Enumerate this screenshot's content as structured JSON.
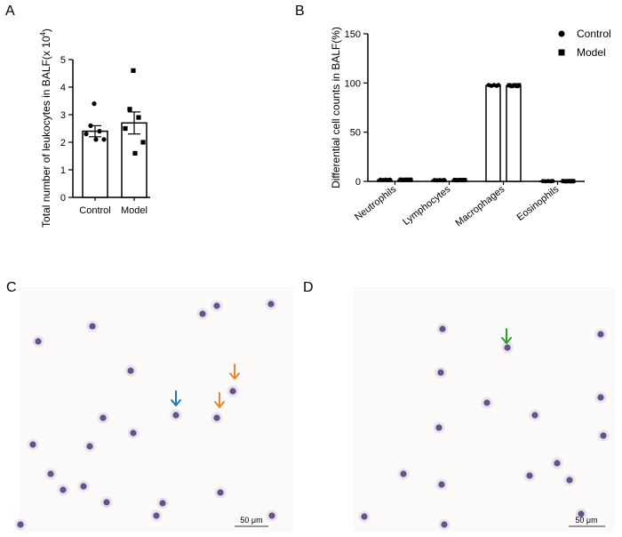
{
  "panel_labels": {
    "a": "A",
    "b": "B",
    "c": "C",
    "d": "D"
  },
  "chart_data": [
    {
      "panel": "A",
      "type": "bar",
      "ylabel_main": "Total number of leukocytes in BALF(x 10",
      "ylabel_sup": "4",
      "ylabel_close": ")",
      "xlabel": "",
      "categories": [
        "Control",
        "Model"
      ],
      "values": [
        2.4,
        2.7
      ],
      "errors": [
        0.2,
        0.4
      ],
      "points": [
        [
          3.4,
          2.6,
          2.4,
          2.3,
          2.1,
          2.1
        ],
        [
          4.6,
          3.2,
          2.9,
          2.5,
          2.0,
          1.6
        ]
      ],
      "markers": [
        "circle",
        "square"
      ],
      "ylim": [
        0,
        5
      ],
      "yticks": [
        "0",
        "1",
        "2",
        "3",
        "4",
        "5"
      ],
      "grid": false
    },
    {
      "panel": "B",
      "type": "bar",
      "ylabel": "Differential cell counts in BALF(%)",
      "xlabel": "",
      "categories": [
        "Neutrophils",
        "Lymphocytes",
        "Macrophages",
        "Eosinophils"
      ],
      "series": [
        {
          "name": "Control",
          "marker": "circle",
          "values": [
            1.5,
            1.2,
            97.5,
            0.2
          ],
          "errors": [
            0.5,
            0.4,
            0.8,
            0.1
          ]
        },
        {
          "name": "Model",
          "marker": "square",
          "values": [
            1.6,
            1.3,
            97.3,
            0.2
          ],
          "errors": [
            0.6,
            0.5,
            0.9,
            0.1
          ]
        }
      ],
      "ylim": [
        0,
        150
      ],
      "yticks": [
        "0",
        "50",
        "100",
        "150"
      ],
      "legend_position": "top-right",
      "grid": false
    }
  ],
  "micrographs": {
    "c": {
      "scale_bar_label": "50 μm",
      "arrow_colors": [
        "#1f77b4",
        "#e8872b",
        "#e8872b"
      ],
      "cells": [
        [
          43,
          384
        ],
        [
          104,
          367
        ],
        [
          147,
          417
        ],
        [
          228,
          353
        ],
        [
          244,
          344
        ],
        [
          305,
          342
        ],
        [
          198,
          467
        ],
        [
          262,
          440
        ],
        [
          244,
          470
        ],
        [
          116,
          470
        ],
        [
          150,
          487
        ],
        [
          37,
          500
        ],
        [
          101,
          502
        ],
        [
          57,
          533
        ],
        [
          71,
          551
        ],
        [
          94,
          547
        ],
        [
          120,
          565
        ],
        [
          183,
          566
        ],
        [
          248,
          554
        ],
        [
          176,
          580
        ],
        [
          23,
          590
        ],
        [
          306,
          580
        ]
      ]
    },
    "d": {
      "scale_bar_label": "50 μm",
      "arrow_colors": [
        "#2ca02c"
      ],
      "cells": [
        [
          498,
          370
        ],
        [
          676,
          376
        ],
        [
          571,
          391
        ],
        [
          496,
          419
        ],
        [
          548,
          453
        ],
        [
          602,
          467
        ],
        [
          494,
          481
        ],
        [
          676,
          447
        ],
        [
          679,
          490
        ],
        [
          627,
          521
        ],
        [
          596,
          535
        ],
        [
          641,
          540
        ],
        [
          654,
          578
        ],
        [
          497,
          545
        ],
        [
          454,
          533
        ],
        [
          410,
          581
        ],
        [
          500,
          590
        ]
      ]
    }
  }
}
